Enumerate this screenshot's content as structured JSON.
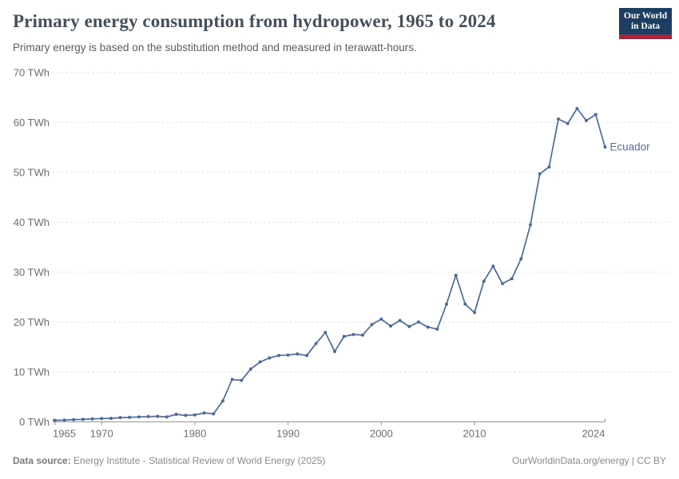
{
  "header": {
    "title": "Primary energy consumption from hydropower, 1965 to 2024",
    "subtitle": "Primary energy is based on the substitution method and measured in terawatt-hours."
  },
  "logo": {
    "line1": "Our World",
    "line2": "in Data",
    "bg_color": "#1d3d63",
    "accent_color": "#a52639"
  },
  "chart_data": {
    "type": "line",
    "title": "Primary energy consumption from hydropower, 1965 to 2024",
    "subtitle": "Primary energy is based on the substitution method and measured in terawatt-hours.",
    "xlabel": "",
    "ylabel": "TWh",
    "xlim": [
      1965,
      2024
    ],
    "ylim": [
      0,
      70
    ],
    "x_ticks": [
      1965,
      1970,
      1980,
      1990,
      2000,
      2010,
      2024
    ],
    "y_ticks": [
      0,
      10,
      20,
      30,
      40,
      50,
      60,
      70
    ],
    "y_tick_suffix": " TWh",
    "grid": "horizontal-dashed",
    "legend_position": "end-of-line-label",
    "series": [
      {
        "name": "Ecuador",
        "color": "#4c6a9c",
        "label_color": "#5b6fa8",
        "x": [
          1965,
          1966,
          1967,
          1968,
          1969,
          1970,
          1971,
          1972,
          1973,
          1974,
          1975,
          1976,
          1977,
          1978,
          1979,
          1980,
          1981,
          1982,
          1983,
          1984,
          1985,
          1986,
          1987,
          1988,
          1989,
          1990,
          1991,
          1992,
          1993,
          1994,
          1995,
          1996,
          1997,
          1998,
          1999,
          2000,
          2001,
          2002,
          2003,
          2004,
          2005,
          2006,
          2007,
          2008,
          2009,
          2010,
          2011,
          2012,
          2013,
          2014,
          2015,
          2016,
          2017,
          2018,
          2019,
          2020,
          2021,
          2022,
          2023,
          2024
        ],
        "values": [
          0.3,
          0.35,
          0.45,
          0.5,
          0.6,
          0.65,
          0.7,
          0.85,
          0.9,
          1.0,
          1.05,
          1.1,
          1.0,
          1.5,
          1.3,
          1.4,
          1.8,
          1.6,
          4.2,
          8.5,
          8.3,
          10.6,
          12.0,
          12.8,
          13.3,
          13.4,
          13.6,
          13.3,
          15.7,
          17.9,
          14.1,
          17.1,
          17.5,
          17.4,
          19.5,
          20.6,
          19.2,
          20.3,
          19.1,
          20.0,
          19.0,
          18.6,
          23.6,
          29.4,
          23.6,
          21.9,
          28.2,
          31.2,
          27.7,
          28.7,
          32.7,
          39.5,
          49.7,
          51.1,
          60.7,
          59.8,
          62.8,
          60.4,
          61.6,
          55.1
        ]
      }
    ]
  },
  "colors": {
    "gridline": "#dcdcdc",
    "axis_line": "#8f8f8f",
    "tick_label": "#6e6e6e"
  },
  "footer": {
    "source_label": "Data source:",
    "source_text": " Energy Institute - Statistical Review of World Energy (2025)",
    "right_text": "OurWorldinData.org/energy | CC BY"
  }
}
